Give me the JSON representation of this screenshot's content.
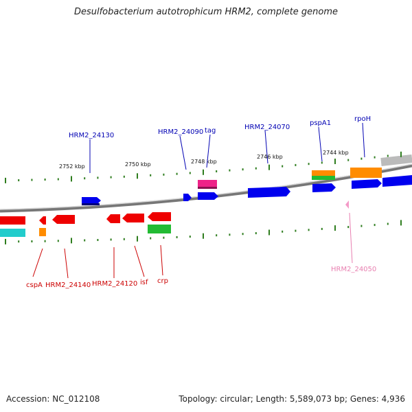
{
  "title": "Desulfobacterium autotrophicum HRM2, complete genome",
  "accession": "Accession: NC_012108",
  "summary": "Topology: circular; Length: 5,589,073 bp; Genes: 4,936",
  "colors": {
    "forward_label": "#0000b3",
    "reverse_label": "#cc0000",
    "pink_label": "#e87fb0",
    "blue": "#0000ee",
    "red": "#ee0000",
    "green": "#22bb33",
    "orange": "#ff8c00",
    "pink": "#ee2288",
    "cyan": "#22cccc",
    "light_pink": "#f49ac8",
    "backbone": "#888888",
    "tick": "#2e7d1e"
  },
  "scale_labels": [
    "2752 kbp",
    "2750 kbp",
    "2748 kbp",
    "2746 kbp",
    "2744 kbp"
  ],
  "forward_labels": [
    "HRM2_24130",
    "HRM2_24090",
    "tag",
    "HRM2_24070",
    "pspA1",
    "rpoH"
  ],
  "reverse_labels": [
    "cspA",
    "HRM2_24140",
    "HRM2_24120",
    "isf",
    "crp"
  ],
  "other_labels": [
    "HRM2_24050"
  ]
}
